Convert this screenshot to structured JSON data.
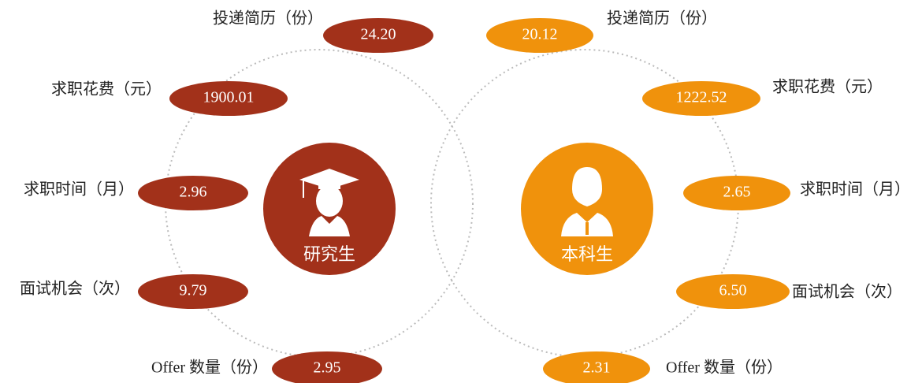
{
  "groups": [
    {
      "label": "研究生",
      "items": [
        {
          "label": "投递简历（份）",
          "value": "24.20"
        },
        {
          "label": "求职花费（元）",
          "value": "1900.01"
        },
        {
          "label": "求职时间（月）",
          "value": "2.96"
        },
        {
          "label": "面试机会（次）",
          "value": "9.79"
        },
        {
          "label": "Offer 数量（份）",
          "value": "2.95"
        }
      ]
    },
    {
      "label": "本科生",
      "items": [
        {
          "label": "投递简历（份）",
          "value": "20.12"
        },
        {
          "label": "求职花费（元）",
          "value": "1222.52"
        },
        {
          "label": "求职时间（月）",
          "value": "2.65"
        },
        {
          "label": "面试机会（次）",
          "value": "6.50"
        },
        {
          "label": "Offer 数量（份）",
          "value": "2.31"
        }
      ]
    }
  ]
}
